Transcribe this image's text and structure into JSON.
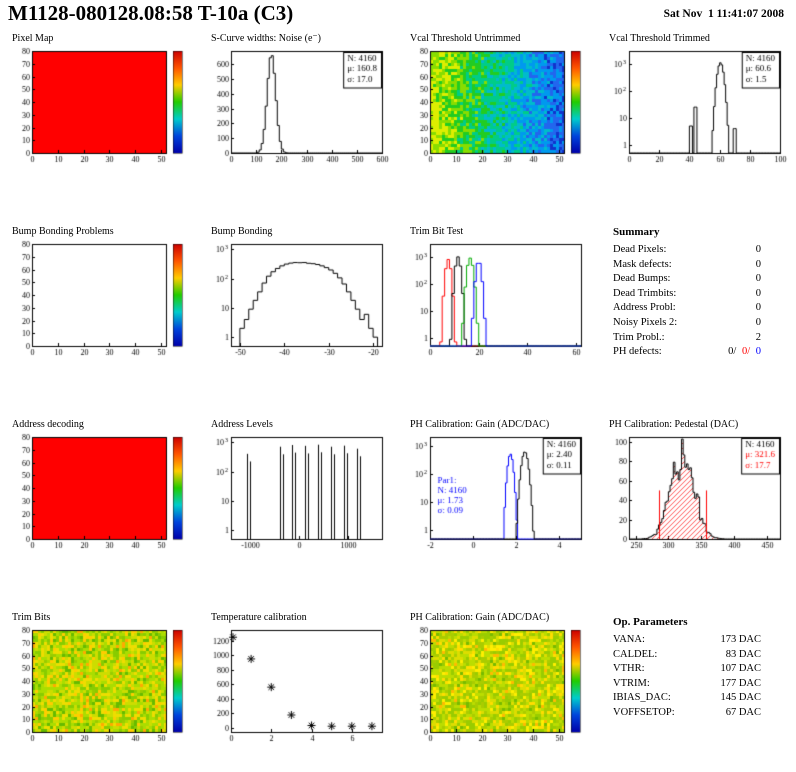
{
  "header": {
    "title": "M1128-080128.08:58 T-10a (C3)",
    "date": "Sat Nov  1 11:41:07 2008"
  },
  "summary": {
    "title": "Summary",
    "rows": [
      {
        "label": "Dead Pixels:",
        "value": "0"
      },
      {
        "label": "Mask defects:",
        "value": "0"
      },
      {
        "label": "Dead Bumps:",
        "value": "0"
      },
      {
        "label": "Dead Trimbits:",
        "value": "0"
      },
      {
        "label": "Address Probl:",
        "value": "0"
      },
      {
        "label": "Noisy Pixels 2:",
        "value": "0"
      },
      {
        "label": "Trim Probl.:",
        "value": "2"
      }
    ],
    "ph_label": "PH defects:",
    "ph_parts": [
      {
        "text": "0/",
        "color": "#000000"
      },
      {
        "text": "0/",
        "color": "#ff0000"
      },
      {
        "text": "0",
        "color": "#0000ff"
      }
    ]
  },
  "op_parameters": {
    "title": "Op. Parameters",
    "rows": [
      {
        "label": "VANA:",
        "value": "173 DAC"
      },
      {
        "label": "CALDEL:",
        "value": "83 DAC"
      },
      {
        "label": "VTHR:",
        "value": "107 DAC"
      },
      {
        "label": "VTRIM:",
        "value": "177 DAC"
      },
      {
        "label": "IBIAS_DAC:",
        "value": "145 DAC"
      },
      {
        "label": "VOFFSETOP:",
        "value": "67 DAC"
      }
    ]
  },
  "chart_data": [
    {
      "type": "heatmap",
      "title": "Pixel Map",
      "x": {
        "min": 0,
        "max": 52,
        "ticks": [
          0,
          10,
          20,
          30,
          40,
          50
        ]
      },
      "y": {
        "min": 0,
        "max": 80,
        "ticks": [
          0,
          10,
          20,
          30,
          40,
          50,
          60,
          70,
          80
        ]
      },
      "fill": "solid",
      "color": "#ff0000",
      "colorbar": true
    },
    {
      "type": "hist",
      "title": "S-Curve widths: Noise (e⁻)",
      "x": {
        "min": 0,
        "max": 600,
        "ticks": [
          0,
          100,
          200,
          300,
          400,
          500,
          600
        ]
      },
      "y": {
        "min": 0,
        "max": 690,
        "ticks": [
          0,
          100,
          200,
          300,
          400,
          500,
          600
        ]
      },
      "binw": 8,
      "series": [
        {
          "color": "#000000",
          "gauss": {
            "mu": 160.8,
            "sigma": 17.0,
            "amp": 670
          }
        }
      ],
      "stats": [
        {
          "t": "N: 4160",
          "c": "#000000"
        },
        {
          "t": "μ: 160.8",
          "c": "#000000"
        },
        {
          "t": "σ: 17.0",
          "c": "#000000"
        }
      ]
    },
    {
      "type": "heatmap",
      "title": "Vcal Threshold Untrimmed",
      "x": {
        "min": 0,
        "max": 52,
        "ticks": [
          0,
          10,
          20,
          30,
          40,
          50
        ]
      },
      "y": {
        "min": 0,
        "max": 80,
        "ticks": [
          0,
          10,
          20,
          30,
          40,
          50,
          60,
          70,
          80
        ]
      },
      "fill": "noise",
      "mode": "xgrad",
      "palette": [
        "#ddee00",
        "#88dd00",
        "#22cc22",
        "#00cc88",
        "#00bbcc",
        "#0099ee",
        "#2266ee",
        "#1133cc"
      ],
      "colorbar": true
    },
    {
      "type": "hist",
      "title": "Vcal Threshold Trimmed",
      "x": {
        "min": 0,
        "max": 100,
        "ticks": [
          0,
          20,
          40,
          60,
          80,
          100
        ]
      },
      "y": {
        "log": true,
        "min": 0.5,
        "max": 3000,
        "decades": [
          0,
          1,
          2,
          3
        ]
      },
      "binw": 1,
      "series": [
        {
          "color": "#000000",
          "gauss": {
            "mu": 60.6,
            "sigma": 1.5,
            "amp": 1100
          },
          "extra": [
            [
              41,
              5
            ],
            [
              44,
              25
            ],
            [
              70,
              4
            ]
          ]
        }
      ],
      "stats": [
        {
          "t": "N: 4160",
          "c": "#000000"
        },
        {
          "t": "μ: 60.6",
          "c": "#000000"
        },
        {
          "t": "σ: 1.5",
          "c": "#000000"
        }
      ]
    },
    {
      "type": "heatmap",
      "title": "Bump Bonding Problems",
      "x": {
        "min": 0,
        "max": 52,
        "ticks": [
          0,
          10,
          20,
          30,
          40,
          50
        ]
      },
      "y": {
        "min": 0,
        "max": 80,
        "ticks": [
          0,
          10,
          20,
          30,
          40,
          50,
          60,
          70,
          80
        ]
      },
      "fill": "none",
      "colorbar": true
    },
    {
      "type": "hist",
      "title": "Bump Bonding",
      "x": {
        "min": -52,
        "max": -18,
        "ticks": [
          -50,
          -40,
          -30,
          -20
        ]
      },
      "y": {
        "log": true,
        "min": 0.5,
        "max": 1500,
        "decades": [
          0,
          1,
          2,
          3
        ]
      },
      "series": [
        {
          "color": "#000000",
          "bins": {
            "start": -50,
            "binw": 1,
            "values": [
              2,
              4,
              9,
              18,
              35,
              70,
              120,
              170,
              220,
              270,
              310,
              335,
              350,
              345,
              350,
              330,
              320,
              300,
              270,
              235,
              195,
              150,
              105,
              65,
              35,
              18,
              9,
              4,
              6,
              2,
              1
            ]
          }
        }
      ]
    },
    {
      "type": "hist",
      "title": "Trim Bit Test",
      "x": {
        "min": 0,
        "max": 62,
        "ticks": [
          0,
          20,
          40,
          60
        ]
      },
      "y": {
        "log": true,
        "min": 0.5,
        "max": 3000,
        "decades": [
          0,
          1,
          2,
          3
        ]
      },
      "binw": 1,
      "series": [
        {
          "color": "#ff0000",
          "gauss": {
            "mu": 7.5,
            "sigma": 0.8,
            "amp": 800
          }
        },
        {
          "color": "#000000",
          "gauss": {
            "mu": 11.5,
            "sigma": 0.8,
            "amp": 1000
          }
        },
        {
          "color": "#00aa00",
          "gauss": {
            "mu": 16.5,
            "sigma": 0.9,
            "amp": 900
          }
        },
        {
          "color": "#0000ff",
          "gauss": {
            "mu": 20.0,
            "sigma": 0.8,
            "amp": 700
          }
        }
      ]
    },
    {
      "type": "heatmap",
      "title": "Address decoding",
      "x": {
        "min": 0,
        "max": 52,
        "ticks": [
          0,
          10,
          20,
          30,
          40,
          50
        ]
      },
      "y": {
        "min": 0,
        "max": 80,
        "ticks": [
          0,
          10,
          20,
          30,
          40,
          50,
          60,
          70,
          80
        ]
      },
      "fill": "solid",
      "color": "#ff0000",
      "colorbar": true
    },
    {
      "type": "spikes",
      "title": "Address Levels",
      "x": {
        "min": -1400,
        "max": 1700,
        "ticks": [
          -1000,
          0,
          1000
        ]
      },
      "y": {
        "log": true,
        "min": 0.5,
        "max": 1500,
        "decades": [
          0,
          1,
          2,
          3
        ]
      },
      "spikes": [
        [
          -1080,
          400
        ],
        [
          -400,
          700
        ],
        [
          -150,
          800
        ],
        [
          110,
          750
        ],
        [
          380,
          820
        ],
        [
          650,
          700
        ],
        [
          920,
          760
        ],
        [
          1190,
          600
        ]
      ]
    },
    {
      "type": "hist",
      "title": "PH Calibration: Gain (ADC/DAC)",
      "x": {
        "min": -2,
        "max": 5,
        "ticks": [
          -2,
          0,
          2,
          4
        ]
      },
      "y": {
        "log": true,
        "min": 0.5,
        "max": 2000,
        "decades": [
          0,
          1,
          2,
          3
        ]
      },
      "binw": 0.07,
      "series": [
        {
          "color": "#0000ff",
          "gauss": {
            "mu": 1.73,
            "sigma": 0.09,
            "amp": 500
          }
        },
        {
          "color": "#000000",
          "gauss": {
            "mu": 2.4,
            "sigma": 0.11,
            "amp": 600
          }
        }
      ],
      "stats": [
        {
          "t": "N: 4160",
          "c": "#000000"
        },
        {
          "t": "μ: 2.40",
          "c": "#000000"
        },
        {
          "t": "σ: 0.11",
          "c": "#000000"
        }
      ],
      "stats2": {
        "fx": 0.05,
        "fy": 0.45,
        "color": "#0000ff",
        "lines": [
          "Par1:",
          "N: 4160",
          "μ: 1.73",
          "σ: 0.09"
        ]
      }
    },
    {
      "type": "hist",
      "title": "PH Calibration: Pedestal (DAC)",
      "x": {
        "min": 240,
        "max": 470,
        "ticks": [
          250,
          300,
          350,
          400,
          450
        ]
      },
      "y": {
        "min": 0,
        "max": 105,
        "ticks": [
          0,
          20,
          40,
          60,
          80,
          100
        ]
      },
      "binw": 2.5,
      "noise": true,
      "series": [
        {
          "color": "#000000",
          "hatch": "#ff0000",
          "gauss": {
            "mu": 321.6,
            "sigma": 17.7,
            "amp": 88
          }
        }
      ],
      "vlines": [
        {
          "x": 286,
          "h": 50,
          "color": "#ff0000"
        },
        {
          "x": 357,
          "h": 50,
          "color": "#ff0000"
        }
      ],
      "stats": [
        {
          "t": "N: 4160",
          "c": "#000000"
        },
        {
          "t": "μ: 321.6",
          "c": "#ff0000"
        },
        {
          "t": "σ: 17.7",
          "c": "#ff0000"
        }
      ]
    },
    {
      "type": "heatmap",
      "title": "Trim Bits",
      "x": {
        "min": 0,
        "max": 52,
        "ticks": [
          0,
          10,
          20,
          30,
          40,
          50
        ]
      },
      "y": {
        "min": 0,
        "max": 80,
        "ticks": [
          0,
          10,
          20,
          30,
          40,
          50,
          60,
          70,
          80
        ]
      },
      "fill": "noise",
      "mode": "uniform",
      "palette": [
        "#ffaa00",
        "#ffcc00",
        "#eedd00",
        "#ccdd00",
        "#aadd00",
        "#88cc00",
        "#66bb00",
        "#99cc00"
      ],
      "colorbar": true
    },
    {
      "type": "scatter",
      "title": "Temperature calibration",
      "x": {
        "min": 0,
        "max": 7.5,
        "ticks": [
          0,
          2,
          4,
          6
        ]
      },
      "y": {
        "min": -60,
        "max": 1350,
        "ticks": [
          0,
          200,
          400,
          600,
          800,
          1000,
          1200
        ]
      },
      "points": [
        [
          0.1,
          1250
        ],
        [
          1,
          950
        ],
        [
          2,
          560
        ],
        [
          3,
          175
        ],
        [
          4,
          30
        ],
        [
          5,
          20
        ],
        [
          6,
          20
        ],
        [
          7,
          20
        ]
      ]
    },
    {
      "type": "heatmap",
      "title": "PH Calibration: Gain (ADC/DAC)",
      "x": {
        "min": 0,
        "max": 52,
        "ticks": [
          0,
          10,
          20,
          30,
          40,
          50
        ]
      },
      "y": {
        "min": 0,
        "max": 80,
        "ticks": [
          0,
          10,
          20,
          30,
          40,
          50,
          60,
          70,
          80
        ]
      },
      "fill": "noise",
      "mode": "uniform",
      "palette": [
        "#ffbb00",
        "#ffdd00",
        "#dddd00",
        "#bbdd00",
        "#99cc00",
        "#aacc00",
        "#ffee00",
        "#77bb00"
      ],
      "colorbar": true
    }
  ]
}
